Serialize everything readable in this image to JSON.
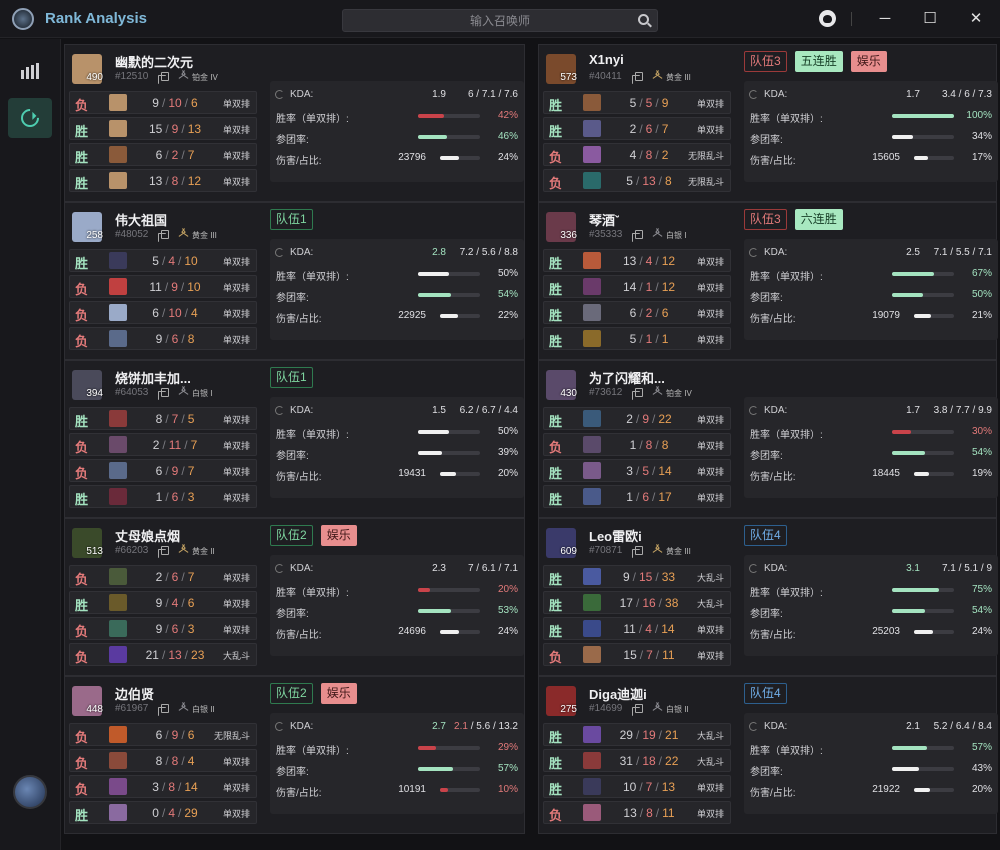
{
  "app": {
    "title": "Rank Analysis",
    "search_placeholder": "输入召唤师",
    "window": {
      "minimize": "─",
      "maximize": "☐",
      "close": "✕"
    }
  },
  "colors": {
    "win": "#a4e3c0",
    "lose": "#e37a7a",
    "bar_good": "#a4e3c0",
    "bar_bad": "#c9434a",
    "bar_neutral": "#f0f0f0",
    "accent": "#4ecdb0"
  },
  "players": [
    {
      "name": "幽默的二次元",
      "tag": "#12510",
      "level": "490",
      "rank": "铂金 IV",
      "rank_color": "gray",
      "avatar": "#b8926a",
      "tags": [],
      "matches": [
        {
          "result": "负",
          "win": false,
          "champ": "#b8926a",
          "k": "9",
          "d": "10",
          "a": "6",
          "mode": "单双排"
        },
        {
          "result": "胜",
          "win": true,
          "champ": "#b8926a",
          "k": "15",
          "d": "9",
          "a": "13",
          "mode": "单双排"
        },
        {
          "result": "胜",
          "win": true,
          "champ": "#8a5a3a",
          "k": "6",
          "d": "2",
          "a": "7",
          "mode": "单双排"
        },
        {
          "result": "胜",
          "win": true,
          "champ": "#b8926a",
          "k": "13",
          "d": "8",
          "a": "12",
          "mode": "单双排"
        }
      ],
      "stats": {
        "kda_ratio": "1.9",
        "kda_good": false,
        "kda_k": "6",
        "kda_d": "7.1",
        "kda_a": "7.6",
        "winrate": "42%",
        "winrate_v": 0.42,
        "winrate_c": "bad",
        "team": "46%",
        "team_v": 0.46,
        "team_c": "good",
        "dmg": "23796",
        "dmg_pct": "24%",
        "dmg_v": 0.24,
        "dmg_c": "neutral"
      }
    },
    {
      "name": "X1nyi",
      "tag": "#40411",
      "level": "573",
      "rank": "黄金 III",
      "rank_color": "gold",
      "avatar": "#7a4a2c",
      "tags": [
        {
          "text": "队伍3",
          "cls": "tag-red"
        },
        {
          "text": "五连胜",
          "cls": "tag-mint"
        },
        {
          "text": "娱乐",
          "cls": "tag-pink"
        }
      ],
      "matches": [
        {
          "result": "胜",
          "win": true,
          "champ": "#8a5a3a",
          "k": "5",
          "d": "5",
          "a": "9",
          "mode": "单双排"
        },
        {
          "result": "胜",
          "win": true,
          "champ": "#5a5a8a",
          "k": "2",
          "d": "6",
          "a": "7",
          "mode": "单双排"
        },
        {
          "result": "负",
          "win": false,
          "champ": "#8a5aa0",
          "k": "4",
          "d": "8",
          "a": "2",
          "mode": "无限乱斗"
        },
        {
          "result": "负",
          "win": false,
          "champ": "#2a6a6a",
          "k": "5",
          "d": "13",
          "a": "8",
          "mode": "无限乱斗"
        }
      ],
      "stats": {
        "kda_ratio": "1.7",
        "kda_good": false,
        "kda_k": "3.4",
        "kda_d": "6",
        "kda_a": "7.3",
        "winrate": "100%",
        "winrate_v": 1.0,
        "winrate_c": "good",
        "team": "34%",
        "team_v": 0.34,
        "team_c": "neutral",
        "dmg": "15605",
        "dmg_pct": "17%",
        "dmg_v": 0.17,
        "dmg_c": "neutral"
      }
    },
    {
      "name": "伟大祖国",
      "tag": "#48052",
      "level": "258",
      "rank": "黄金 III",
      "rank_color": "gold",
      "avatar": "#9aaac8",
      "tags": [
        {
          "text": "队伍1",
          "cls": "tag-green"
        }
      ],
      "matches": [
        {
          "result": "胜",
          "win": true,
          "champ": "#3a3a5a",
          "k": "5",
          "d": "4",
          "a": "10",
          "mode": "单双排"
        },
        {
          "result": "负",
          "win": false,
          "champ": "#c04040",
          "k": "11",
          "d": "9",
          "a": "10",
          "mode": "单双排"
        },
        {
          "result": "负",
          "win": false,
          "champ": "#9aaac8",
          "k": "6",
          "d": "10",
          "a": "4",
          "mode": "单双排"
        },
        {
          "result": "负",
          "win": false,
          "champ": "#5a6a8a",
          "k": "9",
          "d": "6",
          "a": "8",
          "mode": "单双排"
        }
      ],
      "stats": {
        "kda_ratio": "2.8",
        "kda_good": true,
        "kda_k": "7.2",
        "kda_d": "5.6",
        "kda_a": "8.8",
        "winrate": "50%",
        "winrate_v": 0.5,
        "winrate_c": "neutral",
        "team": "54%",
        "team_v": 0.54,
        "team_c": "good",
        "dmg": "22925",
        "dmg_pct": "22%",
        "dmg_v": 0.22,
        "dmg_c": "neutral"
      }
    },
    {
      "name": "琴酒ˇ",
      "tag": "#35333",
      "level": "336",
      "rank": "白银 I",
      "rank_color": "gray",
      "avatar": "#6a3a4a",
      "tags": [
        {
          "text": "队伍3",
          "cls": "tag-red"
        },
        {
          "text": "六连胜",
          "cls": "tag-mint"
        }
      ],
      "matches": [
        {
          "result": "胜",
          "win": true,
          "champ": "#b85a3a",
          "k": "13",
          "d": "4",
          "a": "12",
          "mode": "单双排"
        },
        {
          "result": "胜",
          "win": true,
          "champ": "#6a3a6a",
          "k": "14",
          "d": "1",
          "a": "12",
          "mode": "单双排"
        },
        {
          "result": "胜",
          "win": true,
          "champ": "#6a6a7a",
          "k": "6",
          "d": "2",
          "a": "6",
          "mode": "单双排"
        },
        {
          "result": "胜",
          "win": true,
          "champ": "#8a6a2a",
          "k": "5",
          "d": "1",
          "a": "1",
          "mode": "单双排"
        }
      ],
      "stats": {
        "kda_ratio": "2.5",
        "kda_good": false,
        "kda_k": "7.1",
        "kda_d": "5.5",
        "kda_a": "7.1",
        "winrate": "67%",
        "winrate_v": 0.67,
        "winrate_c": "good",
        "team": "50%",
        "team_v": 0.5,
        "team_c": "good",
        "dmg": "19079",
        "dmg_pct": "21%",
        "dmg_v": 0.21,
        "dmg_c": "neutral"
      }
    },
    {
      "name": "烧饼加丰加...",
      "tag": "#64053",
      "level": "394",
      "rank": "白银 I",
      "rank_color": "gray",
      "avatar": "#4a4a5a",
      "tags": [
        {
          "text": "队伍1",
          "cls": "tag-green"
        }
      ],
      "matches": [
        {
          "result": "胜",
          "win": true,
          "champ": "#8a3a3a",
          "k": "8",
          "d": "7",
          "a": "5",
          "mode": "单双排"
        },
        {
          "result": "负",
          "win": false,
          "champ": "#6a4a6a",
          "k": "2",
          "d": "11",
          "a": "7",
          "mode": "单双排"
        },
        {
          "result": "负",
          "win": false,
          "champ": "#5a6a8a",
          "k": "6",
          "d": "9",
          "a": "7",
          "mode": "单双排"
        },
        {
          "result": "胜",
          "win": true,
          "champ": "#6a2a3a",
          "k": "1",
          "d": "6",
          "a": "3",
          "mode": "单双排"
        }
      ],
      "stats": {
        "kda_ratio": "1.5",
        "kda_good": false,
        "kda_k": "6.2",
        "kda_d": "6.7",
        "kda_a": "4.4",
        "winrate": "50%",
        "winrate_v": 0.5,
        "winrate_c": "neutral",
        "team": "39%",
        "team_v": 0.39,
        "team_c": "neutral",
        "dmg": "19431",
        "dmg_pct": "20%",
        "dmg_v": 0.2,
        "dmg_c": "neutral"
      }
    },
    {
      "name": "为了闪耀和...",
      "tag": "#73612",
      "level": "430",
      "rank": "铂金 IV",
      "rank_color": "gray",
      "avatar": "#5a4a6a",
      "tags": [],
      "matches": [
        {
          "result": "胜",
          "win": true,
          "champ": "#3a5a7a",
          "k": "2",
          "d": "9",
          "a": "22",
          "mode": "单双排"
        },
        {
          "result": "负",
          "win": false,
          "champ": "#5a4a6a",
          "k": "1",
          "d": "8",
          "a": "8",
          "mode": "单双排"
        },
        {
          "result": "胜",
          "win": true,
          "champ": "#7a5a8a",
          "k": "3",
          "d": "5",
          "a": "14",
          "mode": "单双排"
        },
        {
          "result": "胜",
          "win": true,
          "champ": "#4a5a8a",
          "k": "1",
          "d": "6",
          "a": "17",
          "mode": "单双排"
        }
      ],
      "stats": {
        "kda_ratio": "1.7",
        "kda_good": false,
        "kda_k": "3.8",
        "kda_d": "7.7",
        "kda_a": "9.9",
        "winrate": "30%",
        "winrate_v": 0.3,
        "winrate_c": "bad",
        "team": "54%",
        "team_v": 0.54,
        "team_c": "good",
        "dmg": "18445",
        "dmg_pct": "19%",
        "dmg_v": 0.19,
        "dmg_c": "neutral"
      }
    },
    {
      "name": "丈母娘点烟",
      "tag": "#66203",
      "level": "513",
      "rank": "黄金 II",
      "rank_color": "gold",
      "avatar": "#3a4a2a",
      "tags": [
        {
          "text": "队伍2",
          "cls": "tag-green"
        },
        {
          "text": "娱乐",
          "cls": "tag-pink"
        }
      ],
      "matches": [
        {
          "result": "负",
          "win": false,
          "champ": "#4a5a3a",
          "k": "2",
          "d": "6",
          "a": "7",
          "mode": "单双排"
        },
        {
          "result": "胜",
          "win": true,
          "champ": "#6a5a2a",
          "k": "9",
          "d": "4",
          "a": "6",
          "mode": "单双排"
        },
        {
          "result": "负",
          "win": false,
          "champ": "#3a6a5a",
          "k": "9",
          "d": "6",
          "a": "3",
          "mode": "单双排"
        },
        {
          "result": "负",
          "win": false,
          "champ": "#5a3aa0",
          "k": "21",
          "d": "13",
          "a": "23",
          "mode": "大乱斗"
        }
      ],
      "stats": {
        "kda_ratio": "2.3",
        "kda_good": false,
        "kda_k": "7",
        "kda_d": "6.1",
        "kda_a": "7.1",
        "winrate": "20%",
        "winrate_v": 0.2,
        "winrate_c": "bad",
        "team": "53%",
        "team_v": 0.53,
        "team_c": "good",
        "dmg": "24696",
        "dmg_pct": "24%",
        "dmg_v": 0.24,
        "dmg_c": "neutral"
      }
    },
    {
      "name": "Leo雷欧i",
      "tag": "#70871",
      "level": "609",
      "rank": "黄金 III",
      "rank_color": "gold",
      "avatar": "#3a3a6a",
      "tags": [
        {
          "text": "队伍4",
          "cls": "tag-blue"
        }
      ],
      "matches": [
        {
          "result": "胜",
          "win": true,
          "champ": "#4a5aa0",
          "k": "9",
          "d": "15",
          "a": "33",
          "mode": "大乱斗"
        },
        {
          "result": "胜",
          "win": true,
          "champ": "#3a6a3a",
          "k": "17",
          "d": "16",
          "a": "38",
          "mode": "大乱斗"
        },
        {
          "result": "胜",
          "win": true,
          "champ": "#3a4a8a",
          "k": "11",
          "d": "4",
          "a": "14",
          "mode": "单双排"
        },
        {
          "result": "负",
          "win": false,
          "champ": "#9a6a4a",
          "k": "15",
          "d": "7",
          "a": "11",
          "mode": "单双排"
        }
      ],
      "stats": {
        "kda_ratio": "3.1",
        "kda_good": true,
        "kda_k": "7.1",
        "kda_d": "5.1",
        "kda_a": "9",
        "winrate": "75%",
        "winrate_v": 0.75,
        "winrate_c": "good",
        "team": "54%",
        "team_v": 0.54,
        "team_c": "good",
        "dmg": "25203",
        "dmg_pct": "24%",
        "dmg_v": 0.24,
        "dmg_c": "neutral"
      }
    },
    {
      "name": "边伯贤",
      "tag": "#61967",
      "level": "448",
      "rank": "白银 II",
      "rank_color": "gray",
      "avatar": "#9a6a8a",
      "tags": [
        {
          "text": "队伍2",
          "cls": "tag-green"
        },
        {
          "text": "娱乐",
          "cls": "tag-pink"
        }
      ],
      "matches": [
        {
          "result": "负",
          "win": false,
          "champ": "#c05a2a",
          "k": "6",
          "d": "9",
          "a": "6",
          "mode": "无限乱斗"
        },
        {
          "result": "负",
          "win": false,
          "champ": "#8a4a3a",
          "k": "8",
          "d": "8",
          "a": "4",
          "mode": "单双排"
        },
        {
          "result": "负",
          "win": false,
          "champ": "#7a4a8a",
          "k": "3",
          "d": "8",
          "a": "14",
          "mode": "单双排"
        },
        {
          "result": "胜",
          "win": true,
          "champ": "#8a6aa0",
          "k": "0",
          "d": "4",
          "a": "29",
          "mode": "单双排"
        }
      ],
      "stats": {
        "kda_ratio": "2.7",
        "kda_good": true,
        "kda_k": "2.1",
        "kda_d": "5.6",
        "kda_a": "13.2",
        "kda_dim": true,
        "winrate": "29%",
        "winrate_v": 0.29,
        "winrate_c": "bad",
        "team": "57%",
        "team_v": 0.57,
        "team_c": "good",
        "dmg": "10191",
        "dmg_pct": "10%",
        "dmg_v": 0.1,
        "dmg_c": "bad"
      }
    },
    {
      "name": "Diga迪迦i",
      "tag": "#14699",
      "level": "275",
      "rank": "白银 II",
      "rank_color": "gray",
      "avatar": "#8a2a2a",
      "tags": [
        {
          "text": "队伍4",
          "cls": "tag-blue"
        }
      ],
      "matches": [
        {
          "result": "胜",
          "win": true,
          "champ": "#6a4aa0",
          "k": "29",
          "d": "19",
          "a": "21",
          "mode": "大乱斗"
        },
        {
          "result": "胜",
          "win": true,
          "champ": "#8a3a3a",
          "k": "31",
          "d": "18",
          "a": "22",
          "mode": "大乱斗"
        },
        {
          "result": "胜",
          "win": true,
          "champ": "#3a3a5a",
          "k": "10",
          "d": "7",
          "a": "13",
          "mode": "单双排"
        },
        {
          "result": "负",
          "win": false,
          "champ": "#9a5a7a",
          "k": "13",
          "d": "8",
          "a": "11",
          "mode": "单双排"
        }
      ],
      "stats": {
        "kda_ratio": "2.1",
        "kda_good": false,
        "kda_k": "5.2",
        "kda_d": "6.4",
        "kda_a": "8.4",
        "winrate": "57%",
        "winrate_v": 0.57,
        "winrate_c": "good",
        "team": "43%",
        "team_v": 0.43,
        "team_c": "neutral",
        "dmg": "21922",
        "dmg_pct": "20%",
        "dmg_v": 0.2,
        "dmg_c": "neutral"
      }
    }
  ],
  "labels": {
    "kda": "KDA:",
    "winrate": "胜率（单双排）:",
    "team": "参团率:",
    "dmg": "伤害/占比:"
  }
}
